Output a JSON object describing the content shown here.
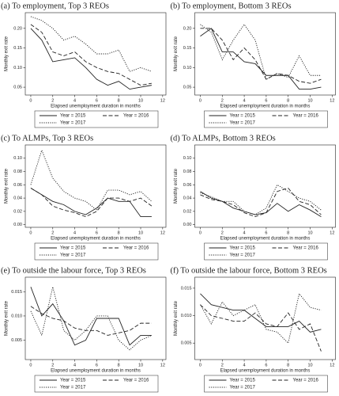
{
  "chart_data": [
    {
      "type": "line",
      "title": "(a) To employment, Top 3 REOs",
      "x_label": "Elapsed unemployment duration in months",
      "y_label": "Monthly exit rate",
      "x": [
        0,
        1,
        2,
        3,
        4,
        5,
        6,
        7,
        8,
        9,
        10,
        11
      ],
      "xlim": [
        -0.5,
        12.3
      ],
      "xticks": [
        0,
        2,
        4,
        6,
        8,
        10,
        12
      ],
      "ylim": [
        0.03,
        0.24
      ],
      "yticks": [
        0.05,
        {
          "value": 0.1,
          "label": "0.10"
        },
        0.15,
        {
          "value": 0.2,
          "label": "0.20"
        }
      ],
      "series": [
        {
          "name": "Year = 2015",
          "color": "#222",
          "dash": "solid",
          "values": [
            0.2,
            0.17,
            0.115,
            0.12,
            0.125,
            0.1,
            0.07,
            0.055,
            0.065,
            0.045,
            0.05,
            0.055
          ]
        },
        {
          "name": "Year = 2016",
          "color": "#222",
          "dash": "dashed",
          "values": [
            0.21,
            0.19,
            0.14,
            0.13,
            0.14,
            0.115,
            0.1,
            0.09,
            0.085,
            0.07,
            0.055,
            0.06
          ]
        },
        {
          "name": "Year = 2017",
          "color": "#222",
          "dash": "dotted",
          "values": [
            0.23,
            0.22,
            0.2,
            0.17,
            0.18,
            0.16,
            0.135,
            0.135,
            0.145,
            0.09,
            0.1,
            0.09
          ]
        }
      ]
    },
    {
      "type": "line",
      "title": "(b) To employment, Bottom 3 REOs",
      "x_label": "Elapsed unemployment duration in months",
      "y_label": "Monthly exit rate",
      "x": [
        0,
        1,
        2,
        3,
        4,
        5,
        6,
        7,
        8,
        9,
        10,
        11
      ],
      "xlim": [
        -0.5,
        12.3
      ],
      "xticks": [
        0,
        2,
        4,
        6,
        8,
        10,
        12
      ],
      "ylim": [
        0.03,
        0.24
      ],
      "yticks": [
        0.05,
        {
          "value": 0.1,
          "label": "0.10"
        },
        0.15,
        {
          "value": 0.2,
          "label": "0.20"
        }
      ],
      "series": [
        {
          "name": "Year = 2015",
          "color": "#222",
          "dash": "solid",
          "values": [
            0.18,
            0.2,
            0.14,
            0.14,
            0.115,
            0.11,
            0.08,
            0.08,
            0.08,
            0.045,
            0.045,
            0.05
          ]
        },
        {
          "name": "Year = 2016",
          "color": "#222",
          "dash": "dashed",
          "values": [
            0.2,
            0.2,
            0.17,
            0.12,
            0.15,
            0.12,
            0.07,
            0.085,
            0.08,
            0.065,
            0.06,
            0.07
          ]
        },
        {
          "name": "Year = 2017",
          "color": "#222",
          "dash": "dotted",
          "values": [
            0.21,
            0.19,
            0.12,
            0.17,
            0.21,
            0.17,
            0.07,
            0.085,
            0.075,
            0.13,
            0.08,
            0.08
          ]
        }
      ]
    },
    {
      "type": "line",
      "title": "(c) To ALMPs, Top 3 REOs",
      "x_label": "Elapsed unemployment duration in months",
      "y_label": "Monthly exit rate",
      "x": [
        0,
        1,
        2,
        3,
        4,
        5,
        6,
        7,
        8,
        9,
        10,
        11
      ],
      "xlim": [
        -0.5,
        12.3
      ],
      "xticks": [
        0,
        2,
        4,
        6,
        8,
        10,
        12
      ],
      "ylim": [
        -0.004,
        0.12
      ],
      "yticks": [
        {
          "value": 0,
          "label": "0.00"
        },
        0.02,
        0.04,
        0.06,
        0.08,
        {
          "value": 0.1,
          "label": "0.10"
        }
      ],
      "series": [
        {
          "name": "Year = 2015",
          "color": "#222",
          "dash": "solid",
          "values": [
            0.055,
            0.045,
            0.035,
            0.03,
            0.02,
            0.015,
            0.025,
            0.04,
            0.035,
            0.035,
            0.012,
            0.012
          ]
        },
        {
          "name": "Year = 2016",
          "color": "#222",
          "dash": "dashed",
          "values": [
            0.055,
            0.045,
            0.028,
            0.022,
            0.018,
            0.012,
            0.02,
            0.04,
            0.04,
            0.035,
            0.04,
            0.028
          ]
        },
        {
          "name": "Year = 2017",
          "color": "#222",
          "dash": "dotted",
          "values": [
            0.06,
            0.112,
            0.07,
            0.05,
            0.04,
            0.035,
            0.022,
            0.052,
            0.052,
            0.045,
            0.05,
            0.035
          ]
        }
      ]
    },
    {
      "type": "line",
      "title": "(d) To ALMPs, Bottom 3 REOs",
      "x_label": "Elapsed unemployment duration in months",
      "y_label": "Monthly exit rate",
      "x": [
        0,
        1,
        2,
        3,
        4,
        5,
        6,
        7,
        8,
        9,
        10,
        11
      ],
      "xlim": [
        -0.5,
        12.3
      ],
      "xticks": [
        0,
        2,
        4,
        6,
        8,
        10,
        12
      ],
      "ylim": [
        -0.004,
        0.12
      ],
      "yticks": [
        {
          "value": 0,
          "label": "0.00"
        },
        0.02,
        0.04,
        0.06,
        0.08,
        {
          "value": 0.1,
          "label": "0.10"
        }
      ],
      "series": [
        {
          "name": "Year = 2015",
          "color": "#222",
          "dash": "solid",
          "values": [
            0.05,
            0.04,
            0.035,
            0.025,
            0.02,
            0.015,
            0.018,
            0.032,
            0.02,
            0.03,
            0.022,
            0.012
          ]
        },
        {
          "name": "Year = 2016",
          "color": "#222",
          "dash": "dashed",
          "values": [
            0.045,
            0.038,
            0.035,
            0.03,
            0.018,
            0.012,
            0.018,
            0.05,
            0.055,
            0.035,
            0.03,
            0.015
          ]
        },
        {
          "name": "Year = 2017",
          "color": "#222",
          "dash": "dotted",
          "values": [
            0.048,
            0.042,
            0.035,
            0.035,
            0.02,
            0.015,
            0.025,
            0.06,
            0.05,
            0.04,
            0.035,
            0.022
          ]
        }
      ]
    },
    {
      "type": "line",
      "title": "(e) To outside the labour force, Top 3 REOs",
      "x_label": "Elapsed unemployment duration in months",
      "y_label": "Monthly exit rate",
      "x": [
        0,
        1,
        2,
        3,
        4,
        5,
        6,
        7,
        8,
        9,
        10,
        11
      ],
      "xlim": [
        -0.5,
        12.3
      ],
      "xticks": [
        0,
        2,
        4,
        6,
        8,
        10,
        12
      ],
      "ylim": [
        0.001,
        0.018
      ],
      "yticks": [
        0.005,
        {
          "value": 0.01,
          "label": "0.010"
        },
        0.015
      ],
      "series": [
        {
          "name": "Year = 2015",
          "color": "#222",
          "dash": "solid",
          "values": [
            0.016,
            0.01,
            0.0125,
            0.009,
            0.004,
            0.005,
            0.0095,
            0.0095,
            0.0095,
            0.004,
            0.006,
            0.006
          ]
        },
        {
          "name": "Year = 2016",
          "color": "#222",
          "dash": "dashed",
          "values": [
            0.012,
            0.0105,
            0.0095,
            0.009,
            0.0075,
            0.007,
            0.007,
            0.006,
            0.0065,
            0.007,
            0.0085,
            0.0085
          ]
        },
        {
          "name": "Year = 2017",
          "color": "#222",
          "dash": "dotted",
          "values": [
            0.011,
            0.006,
            0.016,
            0.007,
            0.005,
            0.007,
            0.01,
            0.01,
            0.005,
            0.003,
            0.005,
            0.006
          ]
        }
      ]
    },
    {
      "type": "line",
      "title": "(f) To outside the labour force, Bottom 3 REOs",
      "x_label": "Elapsed unemployment duration in months",
      "y_label": "Monthly exit rate",
      "x": [
        0,
        1,
        2,
        3,
        4,
        5,
        6,
        7,
        8,
        9,
        10,
        11
      ],
      "xlim": [
        -0.5,
        12.3
      ],
      "xticks": [
        0,
        2,
        4,
        6,
        8,
        10,
        12
      ],
      "ylim": [
        0.002,
        0.017
      ],
      "yticks": [
        0.005,
        {
          "value": 0.01,
          "label": "0.010"
        },
        0.015
      ],
      "series": [
        {
          "name": "Year = 2015",
          "color": "#222",
          "dash": "solid",
          "values": [
            0.014,
            0.012,
            0.0115,
            0.011,
            0.011,
            0.0095,
            0.008,
            0.008,
            0.008,
            0.009,
            0.007,
            0.0075
          ]
        },
        {
          "name": "Year = 2016",
          "color": "#222",
          "dash": "dashed",
          "values": [
            0.012,
            0.01,
            0.0095,
            0.009,
            0.009,
            0.0105,
            0.0085,
            0.008,
            0.0105,
            0.0075,
            0.0085,
            0.0035
          ]
        },
        {
          "name": "Year = 2017",
          "color": "#222",
          "dash": "dotted",
          "values": [
            0.012,
            0.0085,
            0.0125,
            0.01,
            0.011,
            0.012,
            0.0075,
            0.007,
            0.005,
            0.014,
            0.0115,
            0.011
          ]
        }
      ]
    }
  ]
}
